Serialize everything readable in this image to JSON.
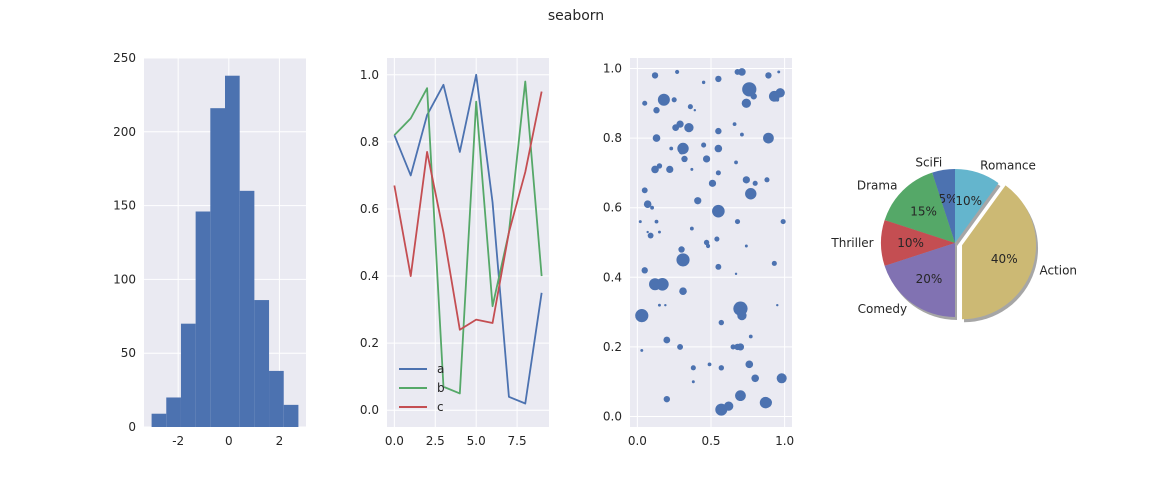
{
  "figure": {
    "title": "seaborn"
  },
  "colors": {
    "background": "#eaeaf2",
    "grid": "#ffffff",
    "a": "#4c72b0",
    "b": "#55a868",
    "c": "#c44e52",
    "text": "#262626"
  },
  "chart_data": [
    {
      "type": "bar",
      "subtype": "histogram",
      "title": "",
      "xlabel": "",
      "ylabel": "",
      "bin_edges": [
        -3.05,
        -2.47,
        -1.89,
        -1.31,
        -0.73,
        -0.15,
        0.43,
        1.01,
        1.59,
        2.17,
        2.75
      ],
      "values": [
        9,
        20,
        70,
        146,
        216,
        238,
        160,
        86,
        38,
        15
      ],
      "xlim": [
        -3.35,
        3.05
      ],
      "ylim": [
        0,
        250
      ],
      "xticks": [
        -2,
        0,
        2
      ],
      "yticks": [
        0,
        50,
        100,
        150,
        200,
        250
      ],
      "grid": true,
      "color": "#4c72b0"
    },
    {
      "type": "line",
      "title": "",
      "xlabel": "",
      "ylabel": "",
      "x": [
        0,
        1,
        2,
        3,
        4,
        5,
        6,
        7,
        8,
        9
      ],
      "series": [
        {
          "name": "a",
          "color": "#4c72b0",
          "values": [
            0.82,
            0.7,
            0.88,
            0.97,
            0.77,
            1.0,
            0.62,
            0.04,
            0.02,
            0.35
          ]
        },
        {
          "name": "b",
          "color": "#55a868",
          "values": [
            0.82,
            0.87,
            0.96,
            0.07,
            0.05,
            0.92,
            0.31,
            0.53,
            0.98,
            0.4
          ]
        },
        {
          "name": "c",
          "color": "#c44e52",
          "values": [
            0.67,
            0.4,
            0.77,
            0.53,
            0.24,
            0.27,
            0.26,
            0.53,
            0.71,
            0.95
          ]
        }
      ],
      "xlim": [
        -0.45,
        9.45
      ],
      "ylim": [
        -0.05,
        1.05
      ],
      "xticks": [
        0.0,
        2.5,
        5.0,
        7.5
      ],
      "yticks": [
        0.0,
        0.2,
        0.4,
        0.6,
        0.8,
        1.0
      ],
      "legend": "lower-left",
      "grid": true
    },
    {
      "type": "scatter",
      "title": "",
      "xlabel": "",
      "ylabel": "",
      "color": "#4c72b0",
      "points": [
        [
          0.12,
          0.98,
          14
        ],
        [
          0.27,
          0.99,
          6
        ],
        [
          0.45,
          0.96,
          4
        ],
        [
          0.68,
          0.99,
          12
        ],
        [
          0.71,
          0.99,
          20
        ],
        [
          0.89,
          0.98,
          14
        ],
        [
          0.96,
          0.99,
          3
        ],
        [
          0.05,
          0.9,
          9
        ],
        [
          0.13,
          0.88,
          14
        ],
        [
          0.18,
          0.91,
          50
        ],
        [
          0.25,
          0.91,
          9
        ],
        [
          0.36,
          0.89,
          9
        ],
        [
          0.39,
          0.88,
          2
        ],
        [
          0.55,
          0.97,
          14
        ],
        [
          0.76,
          0.94,
          70
        ],
        [
          0.79,
          0.92,
          14
        ],
        [
          0.93,
          0.92,
          40
        ],
        [
          0.97,
          0.93,
          30
        ],
        [
          0.95,
          0.91,
          5
        ],
        [
          0.74,
          0.9,
          30
        ],
        [
          0.13,
          0.8,
          20
        ],
        [
          0.26,
          0.83,
          16
        ],
        [
          0.29,
          0.84,
          18
        ],
        [
          0.31,
          0.77,
          45
        ],
        [
          0.35,
          0.83,
          30
        ],
        [
          0.45,
          0.78,
          9
        ],
        [
          0.55,
          0.82,
          14
        ],
        [
          0.66,
          0.84,
          5
        ],
        [
          0.71,
          0.81,
          5
        ],
        [
          0.89,
          0.8,
          40
        ],
        [
          0.23,
          0.77,
          5
        ],
        [
          0.3,
          0.76,
          9
        ],
        [
          0.12,
          0.71,
          20
        ],
        [
          0.15,
          0.72,
          10
        ],
        [
          0.22,
          0.71,
          18
        ],
        [
          0.32,
          0.74,
          14
        ],
        [
          0.37,
          0.71,
          3
        ],
        [
          0.47,
          0.74,
          18
        ],
        [
          0.51,
          0.67,
          18
        ],
        [
          0.55,
          0.77,
          20
        ],
        [
          0.55,
          0.7,
          9
        ],
        [
          0.67,
          0.73,
          5
        ],
        [
          0.74,
          0.68,
          18
        ],
        [
          0.77,
          0.64,
          45
        ],
        [
          0.8,
          0.67,
          9
        ],
        [
          0.88,
          0.68,
          9
        ],
        [
          0.05,
          0.65,
          12
        ],
        [
          0.07,
          0.61,
          20
        ],
        [
          0.1,
          0.6,
          5
        ],
        [
          0.41,
          0.62,
          18
        ],
        [
          0.55,
          0.59,
          55
        ],
        [
          0.68,
          0.56,
          9
        ],
        [
          0.99,
          0.56,
          9
        ],
        [
          0.02,
          0.56,
          3
        ],
        [
          0.13,
          0.56,
          5
        ],
        [
          0.09,
          0.52,
          12
        ],
        [
          0.15,
          0.53,
          3
        ],
        [
          0.3,
          0.48,
          14
        ],
        [
          0.47,
          0.5,
          10
        ],
        [
          0.54,
          0.51,
          9
        ],
        [
          0.74,
          0.49,
          3
        ],
        [
          0.07,
          0.53,
          2
        ],
        [
          0.48,
          0.49,
          6
        ],
        [
          0.31,
          0.45,
          60
        ],
        [
          0.37,
          0.54,
          5
        ],
        [
          0.55,
          0.43,
          12
        ],
        [
          0.67,
          0.41,
          2
        ],
        [
          0.93,
          0.44,
          9
        ],
        [
          0.05,
          0.42,
          14
        ],
        [
          0.12,
          0.38,
          50
        ],
        [
          0.17,
          0.38,
          55
        ],
        [
          0.31,
          0.36,
          20
        ],
        [
          0.15,
          0.32,
          3
        ],
        [
          0.19,
          0.32,
          2
        ],
        [
          0.03,
          0.29,
          60
        ],
        [
          0.7,
          0.31,
          70
        ],
        [
          0.71,
          0.29,
          30
        ],
        [
          0.57,
          0.27,
          10
        ],
        [
          0.95,
          0.32,
          2
        ],
        [
          0.2,
          0.22,
          16
        ],
        [
          0.29,
          0.2,
          12
        ],
        [
          0.65,
          0.2,
          9
        ],
        [
          0.68,
          0.2,
          14
        ],
        [
          0.7,
          0.2,
          18
        ],
        [
          0.77,
          0.23,
          5
        ],
        [
          0.76,
          0.15,
          20
        ],
        [
          0.49,
          0.15,
          5
        ],
        [
          0.38,
          0.14,
          9
        ],
        [
          0.57,
          0.14,
          10
        ],
        [
          0.8,
          0.11,
          20
        ],
        [
          0.98,
          0.11,
          35
        ],
        [
          0.38,
          0.1,
          3
        ],
        [
          0.2,
          0.05,
          14
        ],
        [
          0.57,
          0.02,
          50
        ],
        [
          0.62,
          0.03,
          30
        ],
        [
          0.7,
          0.06,
          40
        ],
        [
          0.87,
          0.04,
          45
        ],
        [
          0.88,
          0.04,
          35
        ],
        [
          0.03,
          0.19,
          3
        ]
      ],
      "xlim": [
        -0.05,
        1.05
      ],
      "ylim": [
        -0.03,
        1.03
      ],
      "xticks": [
        0.0,
        0.5,
        1.0
      ],
      "yticks": [
        0.0,
        0.2,
        0.4,
        0.6,
        0.8,
        1.0
      ],
      "grid": true
    },
    {
      "type": "pie",
      "title": "",
      "startangle": 90,
      "slices": [
        {
          "label": "SciFi",
          "value": 5,
          "pct": "5%",
          "color": "#4c72b0",
          "explode": 0
        },
        {
          "label": "Drama",
          "value": 15,
          "pct": "15%",
          "color": "#55a868",
          "explode": 0
        },
        {
          "label": "Thriller",
          "value": 10,
          "pct": "10%",
          "color": "#c44e52",
          "explode": 0
        },
        {
          "label": "Comedy",
          "value": 20,
          "pct": "20%",
          "color": "#8172b2",
          "explode": 0
        },
        {
          "label": "Action",
          "value": 40,
          "pct": "40%",
          "color": "#ccb974",
          "explode": 0.1
        },
        {
          "label": "Romance",
          "value": 10,
          "pct": "10%",
          "color": "#64b5cd",
          "explode": 0
        }
      ],
      "shadow": true
    }
  ]
}
